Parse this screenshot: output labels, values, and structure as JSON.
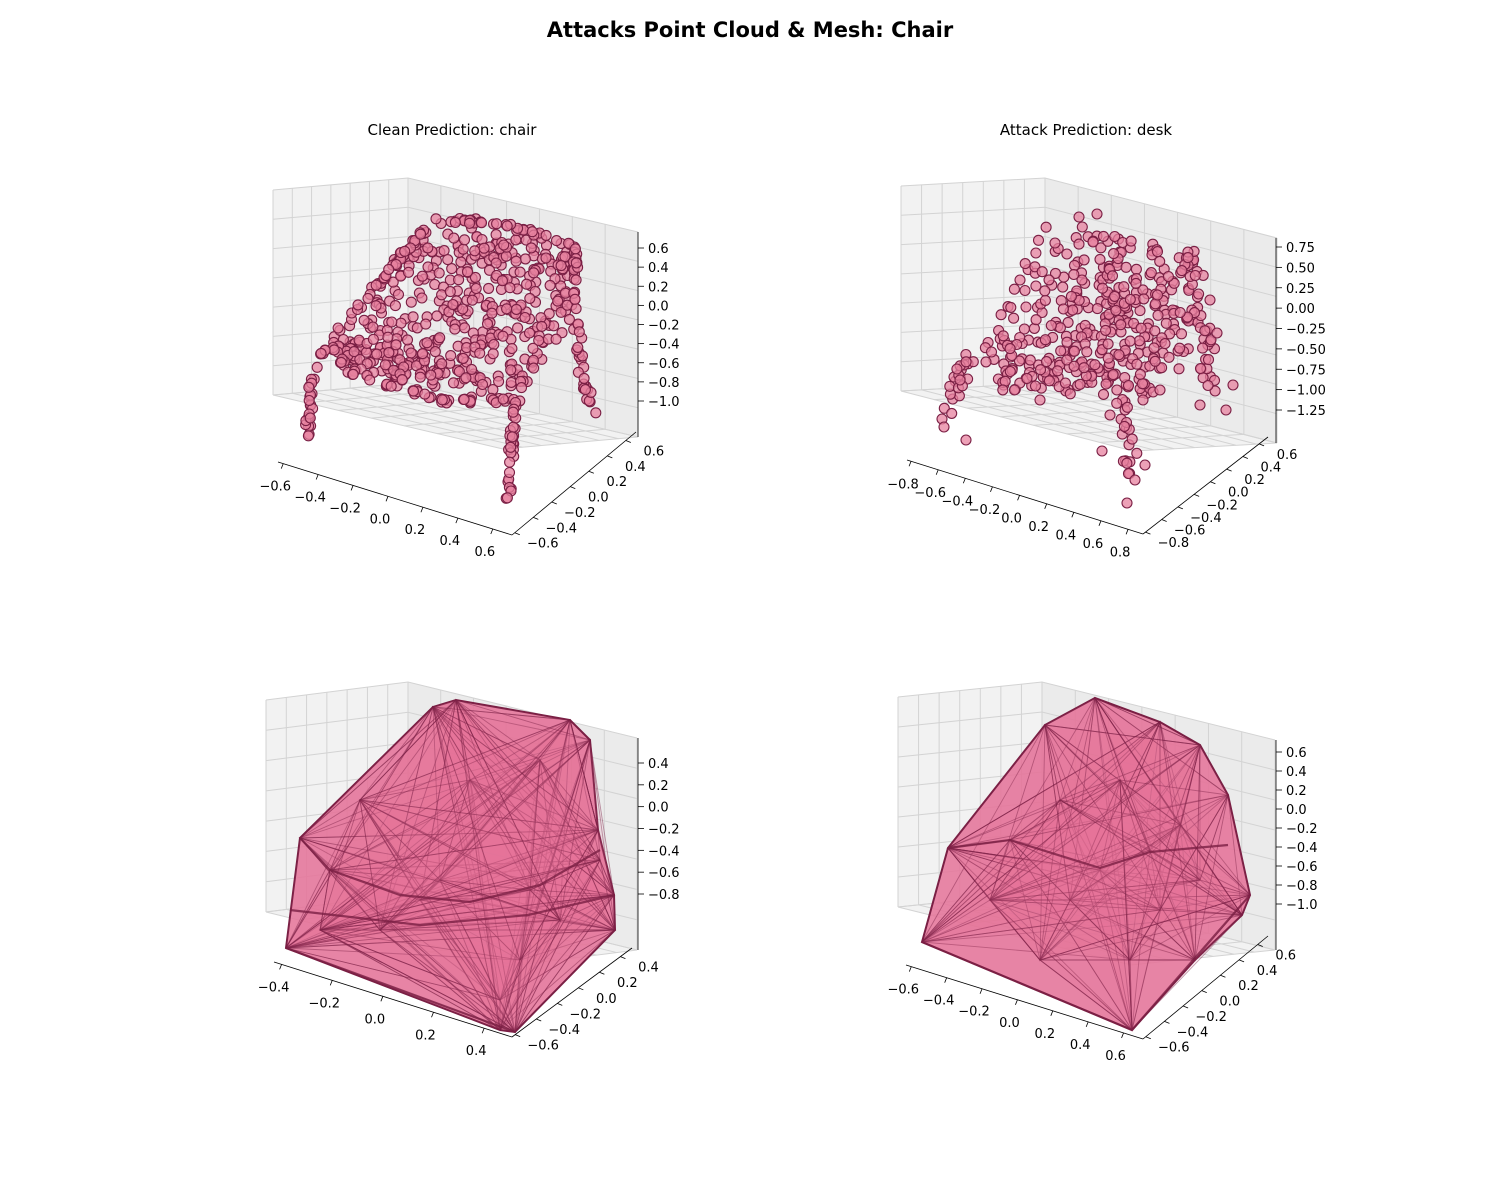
{
  "figure": {
    "title": "Attacks Point Cloud & Mesh: Chair"
  },
  "colors": {
    "point_fill": "#e7829f",
    "point_edge": "#7a1f44",
    "mesh_fill": "#e57399",
    "mesh_edge": "#7a1f44",
    "pane_light": "#f2f2f2",
    "pane_mid": "#ebebeb",
    "grid": "#d3d3d3"
  },
  "chart_data": [
    {
      "type": "scatter",
      "projection": "3d",
      "title": "Clean Prediction: chair",
      "x_ticks": [
        "−0.6",
        "−0.4",
        "−0.2",
        "0.0",
        "0.2",
        "0.4",
        "0.6"
      ],
      "y_ticks": [
        "−0.6",
        "−0.4",
        "−0.2",
        "0.0",
        "0.2",
        "0.4",
        "0.6"
      ],
      "z_ticks": [
        "0.6",
        "0.4",
        "0.2",
        "0.0",
        "−0.2",
        "−0.4",
        "−0.6",
        "−0.8",
        "−1.0"
      ],
      "xlim": [
        -0.6,
        0.6
      ],
      "ylim": [
        -0.6,
        0.6
      ],
      "zlim": [
        -1.05,
        0.65
      ],
      "shape": "chair with backrest, seat and four legs"
    },
    {
      "type": "scatter",
      "projection": "3d",
      "title": "Attack Prediction: desk",
      "x_ticks": [
        "−0.8",
        "−0.6",
        "−0.4",
        "−0.2",
        "0.0",
        "0.2",
        "0.4",
        "0.6",
        "0.8"
      ],
      "y_ticks": [
        "−0.8",
        "−0.6",
        "−0.4",
        "−0.2",
        "0.0",
        "0.2",
        "0.4",
        "0.6"
      ],
      "z_ticks": [
        "0.75",
        "0.50",
        "0.25",
        "0.00",
        "−0.25",
        "−0.50",
        "−0.75",
        "−1.00",
        "−1.25"
      ],
      "xlim": [
        -0.8,
        0.8
      ],
      "ylim": [
        -0.8,
        0.6
      ],
      "zlim": [
        -1.25,
        0.8
      ],
      "shape": "perturbed chair point cloud with scattered outliers"
    },
    {
      "type": "mesh",
      "projection": "3d",
      "title": "",
      "x_ticks": [
        "−0.4",
        "−0.2",
        "0.0",
        "0.2",
        "0.4"
      ],
      "y_ticks": [
        "−0.6",
        "−0.4",
        "−0.2",
        "0.0",
        "0.2",
        "0.4"
      ],
      "z_ticks": [
        "0.4",
        "0.2",
        "0.0",
        "−0.2",
        "−0.4",
        "−0.6",
        "−0.8"
      ],
      "shape": "triangulated mesh of clean chair"
    },
    {
      "type": "mesh",
      "projection": "3d",
      "title": "",
      "x_ticks": [
        "−0.6",
        "−0.4",
        "−0.2",
        "0.0",
        "0.2",
        "0.4",
        "0.6"
      ],
      "y_ticks": [
        "−0.6",
        "−0.4",
        "−0.2",
        "0.0",
        "0.2",
        "0.4",
        "0.6"
      ],
      "z_ticks": [
        "0.6",
        "0.4",
        "0.2",
        "0.0",
        "−0.2",
        "−0.4",
        "−0.6",
        "−0.8",
        "−1.0"
      ],
      "shape": "triangulated mesh of attacked chair"
    }
  ]
}
